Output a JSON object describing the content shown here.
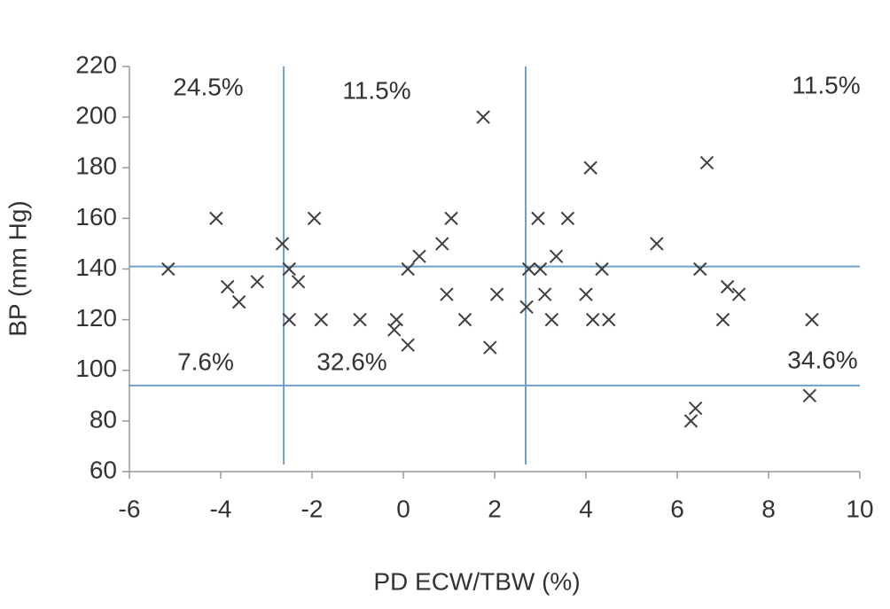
{
  "chart_data": {
    "type": "scatter",
    "x_label": "PD ECW/TBW (%)",
    "y_label": "BP (mm Hg)",
    "x": [
      -5.15,
      -4.1,
      -3.85,
      -3.6,
      -3.2,
      -2.65,
      -2.5,
      -2.5,
      -2.3,
      -1.95,
      -1.8,
      -0.95,
      -0.15,
      -0.2,
      0.1,
      0.1,
      0.35,
      0.85,
      0.95,
      1.05,
      1.35,
      1.75,
      1.9,
      2.05,
      2.7,
      2.75,
      2.95,
      3.0,
      3.1,
      3.25,
      3.35,
      3.6,
      4.0,
      4.1,
      4.15,
      4.35,
      4.5,
      5.55,
      6.3,
      6.4,
      6.5,
      6.65,
      7.1,
      7.0,
      7.35,
      8.95,
      8.9
    ],
    "values": [
      140,
      160,
      133,
      127,
      135,
      150,
      140,
      120,
      135,
      160,
      120,
      120,
      120,
      116,
      110,
      140,
      145,
      150,
      130,
      160,
      120,
      200,
      109,
      130,
      125,
      140,
      160,
      140,
      130,
      120,
      145,
      160,
      130,
      180,
      120,
      140,
      120,
      150,
      80,
      85,
      140,
      182,
      133,
      120,
      130,
      120,
      90
    ],
    "color": "#404040",
    "xlim": [
      -6,
      10
    ],
    "xticks": [
      -6,
      -4,
      -2,
      0,
      2,
      4,
      6,
      8,
      10
    ],
    "ylim": [
      60,
      220
    ],
    "yticks": [
      60,
      80,
      100,
      120,
      140,
      160,
      180,
      200,
      220
    ],
    "reference_lines": {
      "x": [
        -2.62,
        2.68
      ],
      "y": [
        141,
        94
      ],
      "color": "#6f9fcc"
    },
    "annotations": [
      "24.5%",
      "11.5%",
      "11.5%",
      "7.6%",
      "32.6%",
      "34.6%"
    ]
  }
}
